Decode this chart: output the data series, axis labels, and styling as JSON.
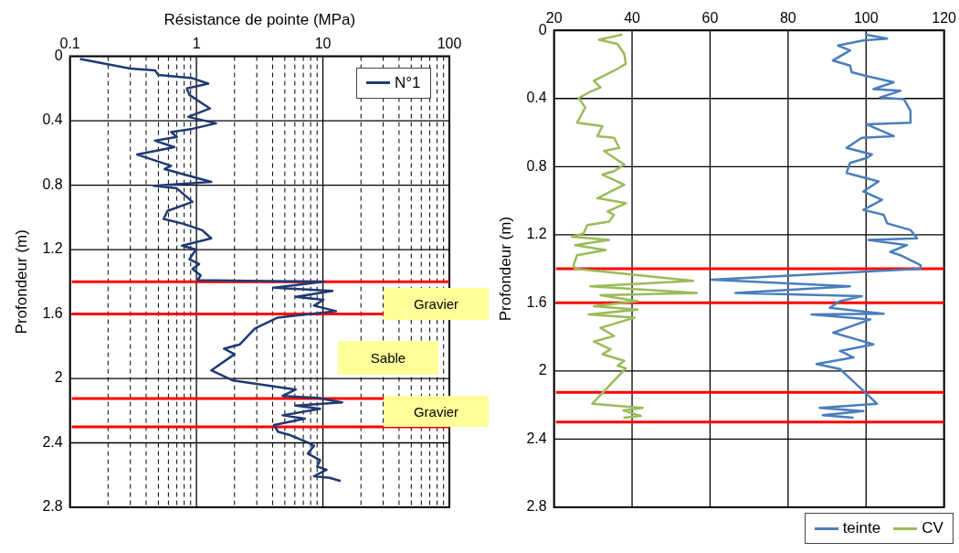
{
  "chart_data": [
    {
      "type": "line",
      "xlabel": "Résistance de pointe (MPa)",
      "ylabel": "Profondeur (m)",
      "log": "x",
      "xlim": [
        0.1,
        100
      ],
      "ylim": [
        2.8,
        0
      ],
      "xticks": [
        0.1,
        {
          "value": 0.2,
          "label": null
        },
        {
          "value": 0.3,
          "label": null
        },
        {
          "value": 0.4,
          "label": null
        },
        {
          "value": 0.5,
          "label": null
        },
        {
          "value": 0.6,
          "label": null
        },
        {
          "value": 0.7,
          "label": null
        },
        {
          "value": 0.8,
          "label": null
        },
        {
          "value": 0.9,
          "label": null
        },
        1,
        {
          "value": 2,
          "label": null
        },
        {
          "value": 3,
          "label": null
        },
        {
          "value": 4,
          "label": null
        },
        {
          "value": 5,
          "label": null
        },
        {
          "value": 6,
          "label": null
        },
        {
          "value": 7,
          "label": null
        },
        {
          "value": 8,
          "label": null
        },
        {
          "value": 9,
          "label": null
        },
        10,
        {
          "value": 20,
          "label": null
        },
        {
          "value": 30,
          "label": null
        },
        {
          "value": 40,
          "label": null
        },
        {
          "value": 50,
          "label": null
        },
        {
          "value": 60,
          "label": null
        },
        {
          "value": 70,
          "label": null
        },
        {
          "value": 80,
          "label": null
        },
        {
          "value": 90,
          "label": null
        },
        100
      ],
      "yticks": [
        0,
        0.4,
        0.8,
        1.2,
        1.6,
        2,
        2.4,
        2.8
      ],
      "grid": true,
      "legend": "top right",
      "series": [
        {
          "name": "N°1",
          "color": "#1f3a73",
          "x": [
            0.12,
            0.3,
            0.47,
            0.5,
            0.93,
            1.24,
            0.84,
            0.88,
            1.28,
            0.86,
            1.43,
            0.93,
            0.63,
            0.7,
            0.47,
            0.67,
            0.34,
            0.63,
            0.56,
            1.31,
            0.46,
            0.7,
            0.93,
            0.59,
            0.55,
            0.79,
            1.11,
            1.31,
            0.77,
            0.99,
            0.88,
            1.05,
            0.93,
            1.08,
            1.02,
            4.8,
            10.1,
            4.1,
            11.9,
            6.1,
            10.1,
            8.5,
            12.7,
            4.4,
            2.9,
            2.19,
            1.65,
            2.0,
            1.31,
            1.95,
            6.1,
            4.8,
            9.0,
            14.2,
            6.1,
            9.5,
            4.8,
            7.2,
            4.1,
            4.4,
            5.4,
            7.6,
            8.5,
            7.6,
            9.5,
            9.0,
            10.7,
            8.5,
            11.3,
            13.8
          ],
          "values": [
            0.016,
            0.076,
            0.088,
            0.116,
            0.136,
            0.17,
            0.2,
            0.24,
            0.324,
            0.376,
            0.416,
            0.45,
            0.47,
            0.5,
            0.524,
            0.564,
            0.61,
            0.68,
            0.7,
            0.78,
            0.804,
            0.82,
            0.904,
            0.96,
            1.01,
            1.04,
            1.08,
            1.13,
            1.176,
            1.2,
            1.26,
            1.29,
            1.32,
            1.36,
            1.39,
            1.397,
            1.4,
            1.437,
            1.457,
            1.493,
            1.512,
            1.548,
            1.582,
            1.622,
            1.69,
            1.79,
            1.815,
            1.85,
            1.95,
            2.013,
            2.069,
            2.109,
            2.12,
            2.149,
            2.169,
            2.189,
            2.229,
            2.249,
            2.289,
            2.33,
            2.35,
            2.398,
            2.418,
            2.467,
            2.507,
            2.547,
            2.567,
            2.607,
            2.617,
            2.637
          ]
        }
      ],
      "ref_lines": [
        {
          "axis": "y",
          "value": 1.4,
          "color": "#ff0000"
        },
        {
          "axis": "y",
          "value": 1.6,
          "color": "#ff0000"
        },
        {
          "axis": "y",
          "value": 2.125,
          "color": "#ff0000"
        },
        {
          "axis": "y",
          "value": 2.3,
          "color": "#ff0000"
        }
      ],
      "annotations": [
        "Gravier",
        "Sable",
        "Gravier"
      ]
    },
    {
      "type": "line",
      "ylabel": "Profondeur (m)",
      "xlim": [
        20,
        120
      ],
      "ylim": [
        2.8,
        0
      ],
      "xticks": [
        20,
        40,
        60,
        80,
        100,
        120
      ],
      "yticks": [
        0,
        0.4,
        0.8,
        1.2,
        1.6,
        2,
        2.4,
        2.8
      ],
      "grid": true,
      "legend": "bottom right",
      "series": [
        {
          "name": "teinte",
          "color": "#4a7ebb",
          "x": [
            99.7,
            105.4,
            99.3,
            92.8,
            95.9,
            91.5,
            95.9,
            96.3,
            99.7,
            107.1,
            101.9,
            108.8,
            103.6,
            109.7,
            111.4,
            111.4,
            100.2,
            107.1,
            98.9,
            95.0,
            101.5,
            100.2,
            95.9,
            95.0,
            103.2,
            99.3,
            104.1,
            99.3,
            104.5,
            105.4,
            111.4,
            113.1,
            100.6,
            110.5,
            106.2,
            108.8,
            114.0,
            114.0,
            60.4,
            95.9,
            66.5,
            98.9,
            93.3,
            90.7,
            104.5,
            86.0,
            101.1,
            91.6,
            101.9,
            93.3,
            96.8,
            87.3,
            93.3,
            102.8,
            88.1,
            99.3,
            88.9,
            96.8
          ],
          "values": [
            0.024,
            0.049,
            0.059,
            0.089,
            0.118,
            0.177,
            0.207,
            0.246,
            0.266,
            0.305,
            0.345,
            0.355,
            0.394,
            0.404,
            0.473,
            0.542,
            0.552,
            0.621,
            0.631,
            0.69,
            0.729,
            0.749,
            0.778,
            0.837,
            0.887,
            0.946,
            0.995,
            1.054,
            1.083,
            1.133,
            1.172,
            1.221,
            1.231,
            1.261,
            1.3,
            1.32,
            1.379,
            1.4,
            1.464,
            1.503,
            1.542,
            1.561,
            1.59,
            1.629,
            1.664,
            1.668,
            1.697,
            1.775,
            1.843,
            1.882,
            1.92,
            1.959,
            1.988,
            2.192,
            2.216,
            2.235,
            2.26,
            2.274
          ]
        },
        {
          "name": "CV",
          "color": "#9bbb59",
          "x": [
            37.5,
            31.5,
            36.2,
            38.0,
            38.4,
            36.2,
            33.7,
            30.2,
            31.9,
            28.9,
            26.3,
            28.0,
            25.9,
            32.4,
            31.1,
            35.4,
            36.7,
            32.8,
            38.0,
            35.4,
            32.4,
            38.0,
            31.1,
            38.4,
            33.7,
            35.4,
            34.1,
            28.5,
            27.6,
            24.6,
            34.1,
            25.4,
            33.2,
            25.9,
            25.0,
            25.4,
            55.7,
            29.3,
            56.6,
            31.9,
            41.4,
            30.2,
            41.4,
            28.9,
            40.6,
            31.9,
            35.4,
            30.2,
            34.5,
            32.4,
            38.0,
            36.3,
            38.4,
            29.8,
            42.7,
            37.8,
            42.3,
            37.8
          ],
          "values": [
            0.024,
            0.055,
            0.079,
            0.138,
            0.197,
            0.227,
            0.256,
            0.296,
            0.335,
            0.365,
            0.398,
            0.453,
            0.542,
            0.562,
            0.621,
            0.631,
            0.69,
            0.709,
            0.788,
            0.827,
            0.847,
            0.906,
            0.985,
            1.015,
            1.064,
            1.083,
            1.123,
            1.143,
            1.192,
            1.212,
            1.231,
            1.261,
            1.29,
            1.32,
            1.379,
            1.4,
            1.47,
            1.503,
            1.542,
            1.555,
            1.59,
            1.619,
            1.639,
            1.668,
            1.687,
            1.746,
            1.794,
            1.827,
            1.872,
            1.901,
            1.94,
            1.969,
            1.984,
            2.192,
            2.216,
            2.231,
            2.264,
            2.274
          ]
        }
      ],
      "ref_lines": [
        {
          "axis": "y",
          "value": 1.4,
          "color": "#ff0000"
        },
        {
          "axis": "y",
          "value": 1.6,
          "color": "#ff0000"
        },
        {
          "axis": "y",
          "value": 2.125,
          "color": "#ff0000"
        },
        {
          "axis": "y",
          "value": 2.3,
          "color": "#ff0000"
        }
      ]
    }
  ]
}
